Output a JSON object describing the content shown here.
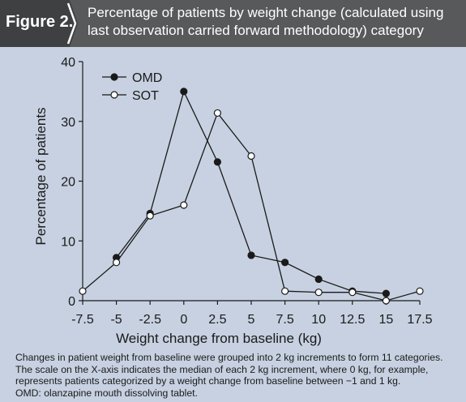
{
  "figure_label": "Figure 2.",
  "title_lines": [
    "Percentage of patients by weight change (calculated using",
    "last observation carried forward methodology) category"
  ],
  "caption_lines": [
    "Changes in patient weight from baseline were grouped into 2 kg increments to form 11 categories.",
    "The scale on the X-axis indicates the median of each 2 kg increment, where 0 kg, for example,",
    "represents patients categorized by a weight change from baseline between −1 and 1 kg.",
    "OMD: olanzapine mouth dissolving tablet."
  ],
  "colors": {
    "header": "#58595b",
    "panel": "#c7d1e1",
    "line": "#1a1a1a"
  },
  "chart_data": {
    "type": "line",
    "xlabel": "Weight change from baseline (kg)",
    "ylabel": "Percentage of patients",
    "xlim": [
      -7.5,
      17.5
    ],
    "ylim": [
      0,
      40
    ],
    "x_ticks": [
      -7.5,
      -5,
      -2.5,
      0,
      2.5,
      5,
      7.5,
      10,
      12.5,
      15,
      17.5
    ],
    "x_tick_labels": [
      "-7.5",
      "-5",
      "-2.5",
      "0",
      "2.5",
      "5",
      "7.5",
      "10",
      "12.5",
      "15",
      "17.5"
    ],
    "y_ticks": [
      0,
      10,
      20,
      30,
      40
    ],
    "y_tick_labels": [
      "0",
      "10",
      "20",
      "30",
      "40"
    ],
    "grid": false,
    "legend_position": "top-left",
    "series": [
      {
        "name": "OMD",
        "marker": "filled-circle",
        "points": [
          [
            -5,
            7.2
          ],
          [
            -2.5,
            14.6
          ],
          [
            0,
            35
          ],
          [
            2.5,
            23.2
          ],
          [
            5,
            7.6
          ],
          [
            7.5,
            6.4
          ],
          [
            10,
            3.6
          ],
          [
            12.5,
            1.6
          ],
          [
            15,
            1.2
          ]
        ]
      },
      {
        "name": "SOT",
        "marker": "open-circle",
        "points": [
          [
            -7.5,
            1.6
          ],
          [
            -5,
            6.4
          ],
          [
            -2.5,
            14.2
          ],
          [
            0,
            16
          ],
          [
            2.5,
            31.4
          ],
          [
            5,
            24.2
          ],
          [
            7.5,
            1.6
          ],
          [
            10,
            1.4
          ],
          [
            12.5,
            1.4
          ],
          [
            15,
            0
          ],
          [
            17.5,
            1.6
          ]
        ]
      }
    ]
  }
}
